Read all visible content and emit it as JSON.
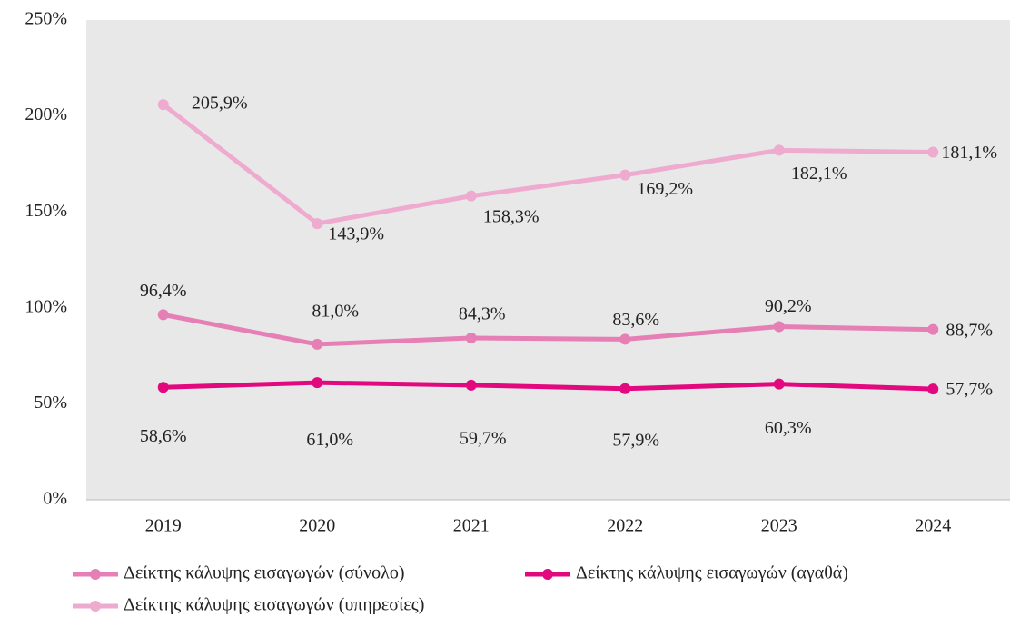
{
  "chart_data": {
    "type": "line",
    "categories": [
      "2019",
      "2020",
      "2021",
      "2022",
      "2023",
      "2024"
    ],
    "series": [
      {
        "name": "Δείκτης κάλυψης εισαγωγών (σύνολο)",
        "color": "#e57fb5",
        "values": [
          96.4,
          81.0,
          84.3,
          83.6,
          90.2,
          88.7
        ],
        "value_labels": [
          "96,4%",
          "81,0%",
          "84,3%",
          "83,6%",
          "90,2%",
          "88,7%"
        ]
      },
      {
        "name": "Δείκτης κάλυψης εισαγωγών (αγαθά)",
        "color": "#e2097f",
        "values": [
          58.6,
          61.0,
          59.7,
          57.9,
          60.3,
          57.7
        ],
        "value_labels": [
          "58,6%",
          "61,0%",
          "59,7%",
          "57,9%",
          "60,3%",
          "57,7%"
        ]
      },
      {
        "name": "Δείκτης κάλυψης εισαγωγών (υπηρεσίες)",
        "color": "#efaad0",
        "values": [
          205.9,
          143.9,
          158.3,
          169.2,
          182.1,
          181.1
        ],
        "value_labels": [
          "205,9%",
          "143,9%",
          "158,3%",
          "169,2%",
          "182,1%",
          "181,1%"
        ]
      }
    ],
    "ylim": [
      0,
      250
    ],
    "yticks": [
      {
        "value": 0,
        "label": "0%"
      },
      {
        "value": 50,
        "label": "50%"
      },
      {
        "value": 100,
        "label": "100%"
      },
      {
        "value": 150,
        "label": "150%"
      },
      {
        "value": 200,
        "label": "200%"
      },
      {
        "value": 250,
        "label": "250%"
      }
    ],
    "grid": false,
    "legend": "bottom"
  }
}
